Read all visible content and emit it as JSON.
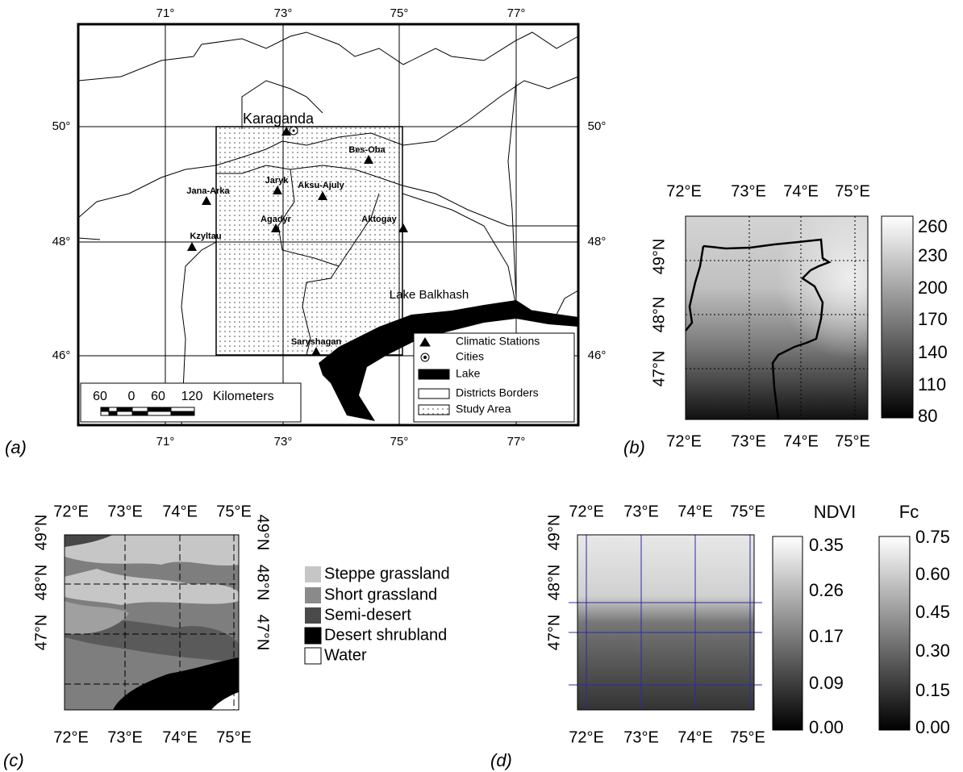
{
  "panel_a": {
    "label": "(a)",
    "lon_top": [
      "71°",
      "73°",
      "75°",
      "77°"
    ],
    "lon_bottom": [
      "71°",
      "73°",
      "75°",
      "77°"
    ],
    "lat_left": [
      "50°",
      "48°",
      "46°"
    ],
    "lat_right": [
      "50°",
      "48°",
      "46°"
    ],
    "places": [
      "Karaganda",
      "Bes-Oba",
      "Jaryk",
      "Aksu-Ajuly",
      "Jana-Arka",
      "Agadyr",
      "Aktogay",
      "Kzyltau",
      "Saryshagan"
    ],
    "lake": "Lake Balkhash",
    "scale": [
      "60",
      "0",
      "60",
      "120"
    ],
    "scale_unit": "Kilometers",
    "legend": [
      "Climatic Stations",
      "Cities",
      "Lake",
      "Districts Borders",
      "Study Area"
    ]
  },
  "panel_b": {
    "label": "(b)",
    "lon_top": [
      "72°E",
      "73°E",
      "74°E",
      "75°E"
    ],
    "lon_bottom": [
      "72°E",
      "73°E",
      "74°E",
      "75°E"
    ],
    "lat_left": [
      "49°N",
      "48°N",
      "47°N"
    ],
    "colorbar": [
      "260",
      "230",
      "200",
      "170",
      "140",
      "110",
      "80"
    ]
  },
  "panel_c": {
    "label": "(c)",
    "lon_top": [
      "72°E",
      "73°E",
      "74°E",
      "75°E"
    ],
    "lon_bottom": [
      "72°E",
      "73°E",
      "74°E",
      "75°E"
    ],
    "lat_left": [
      "49°N",
      "48°N",
      "47°N"
    ],
    "lat_right": [
      "49°N",
      "48°N",
      "47°N"
    ],
    "legend": [
      "Steppe grassland",
      "Short grassland",
      "Semi-desert",
      "Desert shrubland",
      "Water"
    ]
  },
  "panel_d": {
    "label": "(d)",
    "lon_top": [
      "72°E",
      "73°E",
      "74°E",
      "75°E"
    ],
    "lon_bottom": [
      "72°E",
      "73°E",
      "74°E",
      "75°E"
    ],
    "lat_left": [
      "49°N",
      "48°N",
      "47°N"
    ],
    "ndvi": {
      "title": "NDVI",
      "ticks": [
        "0.35",
        "0.26",
        "0.17",
        "0.09",
        "0.00"
      ]
    },
    "fc": {
      "title": "Fc",
      "ticks": [
        "0.75",
        "0.60",
        "0.45",
        "0.30",
        "0.15",
        "0.00"
      ]
    }
  }
}
